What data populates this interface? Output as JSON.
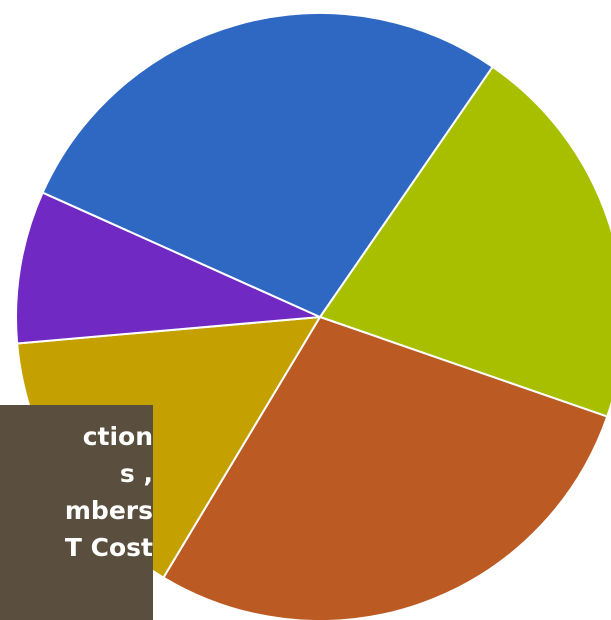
{
  "chart_data": {
    "type": "pie",
    "start_angle_deg": 34.6,
    "slices": [
      {
        "value": 20.7,
        "color": "#a8bf00"
      },
      {
        "value": 28.3,
        "color": "#bb5a22"
      },
      {
        "value": 15.0,
        "color": "#c4a000"
      },
      {
        "value": 8.1,
        "color": "#7029c2"
      },
      {
        "value": 27.9,
        "color": "#2f68c2"
      }
    ]
  },
  "tooltip": {
    "lines": [
      "ction",
      "s ,",
      "mbers",
      "T Cost"
    ]
  }
}
